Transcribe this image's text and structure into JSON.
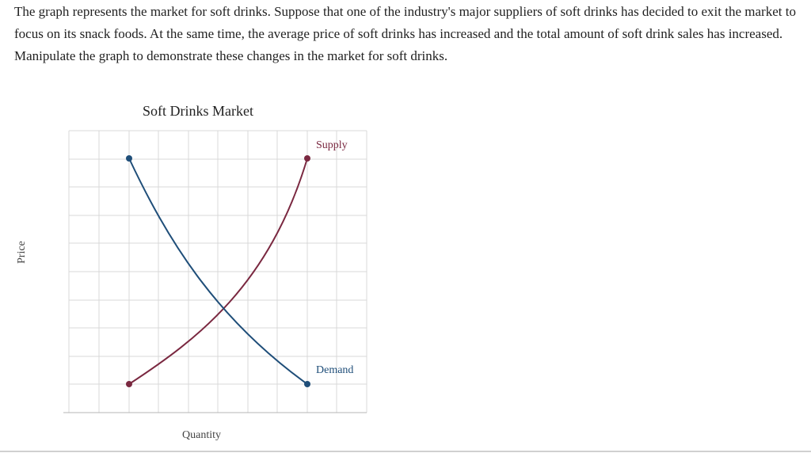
{
  "question": {
    "text": "The graph represents the market for soft drinks. Suppose that one of the industry's major suppliers of soft drinks has decided to exit the market to focus on its snack foods. At the same time, the average price of soft drinks has increased and the total amount of soft drink sales has increased. Manipulate the graph to demonstrate these changes in the market for soft drinks."
  },
  "graph": {
    "title": "Soft Drinks Market",
    "x_label": "Quantity",
    "y_label": "Price",
    "supply_label": "Supply",
    "demand_label": "Demand",
    "colors": {
      "supply": "#7a2840",
      "demand": "#1f4e79",
      "grid": "#d9d9d9"
    }
  }
}
